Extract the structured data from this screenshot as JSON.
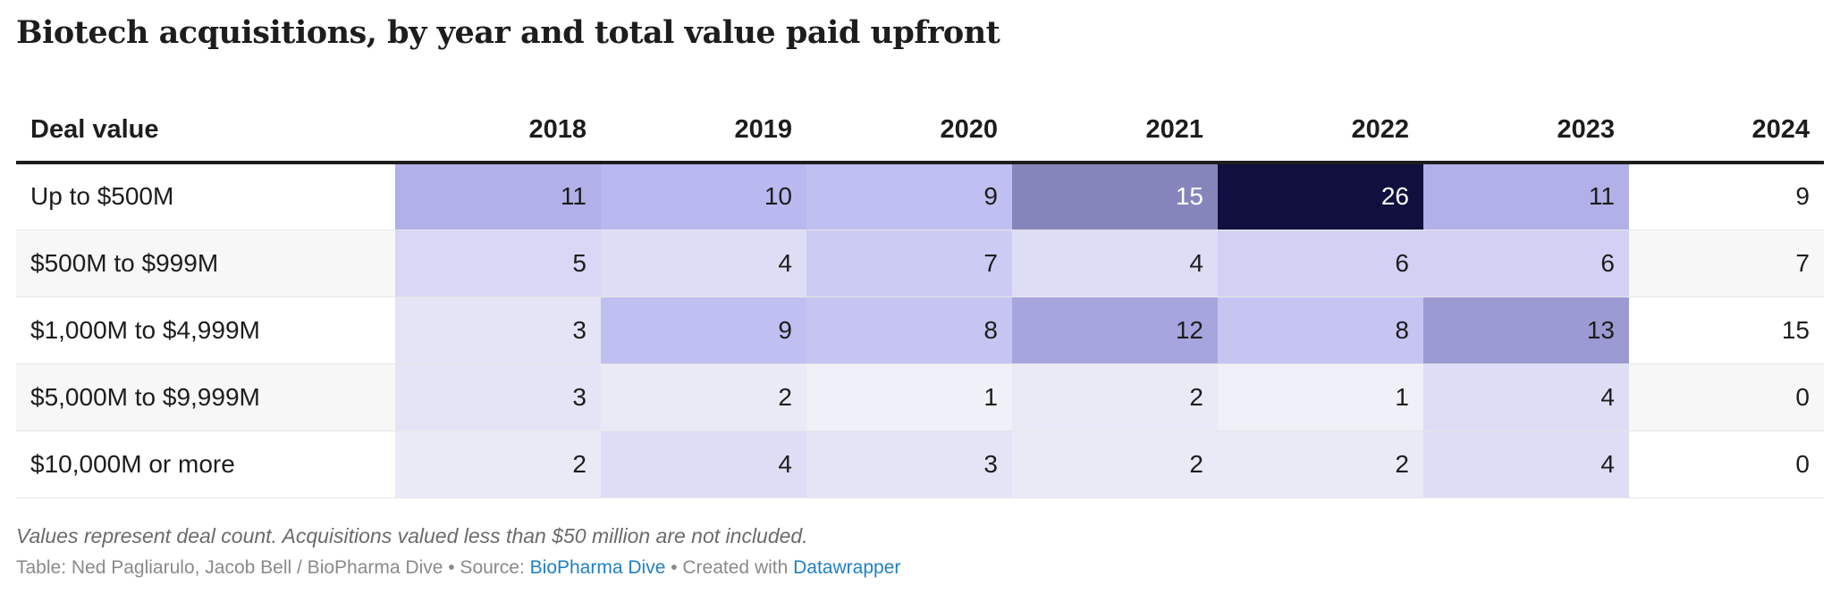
{
  "title": "Biotech acquisitions, by year and total value paid upfront",
  "chart_data": {
    "type": "heatmap",
    "title": "Biotech acquisitions, by year and total value paid upfront",
    "row_header": "Deal value",
    "columns": [
      "2018",
      "2019",
      "2020",
      "2021",
      "2022",
      "2023",
      "2024"
    ],
    "colored_columns": [
      "2018",
      "2019",
      "2020",
      "2021",
      "2022",
      "2023"
    ],
    "rows": [
      {
        "label": "Up to $500M",
        "values": [
          11,
          10,
          9,
          15,
          26,
          11,
          9
        ]
      },
      {
        "label": "$500M to $999M",
        "values": [
          5,
          4,
          7,
          4,
          6,
          6,
          7
        ]
      },
      {
        "label": "$1,000M to $4,999M",
        "values": [
          3,
          9,
          8,
          12,
          8,
          13,
          15
        ]
      },
      {
        "label": "$5,000M to $9,999M",
        "values": [
          3,
          2,
          1,
          2,
          1,
          4,
          0
        ]
      },
      {
        "label": "$10,000M or more",
        "values": [
          2,
          4,
          3,
          2,
          2,
          4,
          0
        ]
      }
    ],
    "color_scale": {
      "min": 0,
      "max": 26,
      "low_color": "#f6f6f9",
      "high_color": "#100f3d"
    }
  },
  "notes": {
    "description": "Values represent deal count. Acquisitions valued less than $50 million are not included.",
    "credit_prefix": "Table: Ned Pagliarulo, Jacob Bell / BioPharma Dive • Source: ",
    "source_link": "BioPharma Dive",
    "created_with": " • Created with ",
    "tool_link": "Datawrapper"
  }
}
